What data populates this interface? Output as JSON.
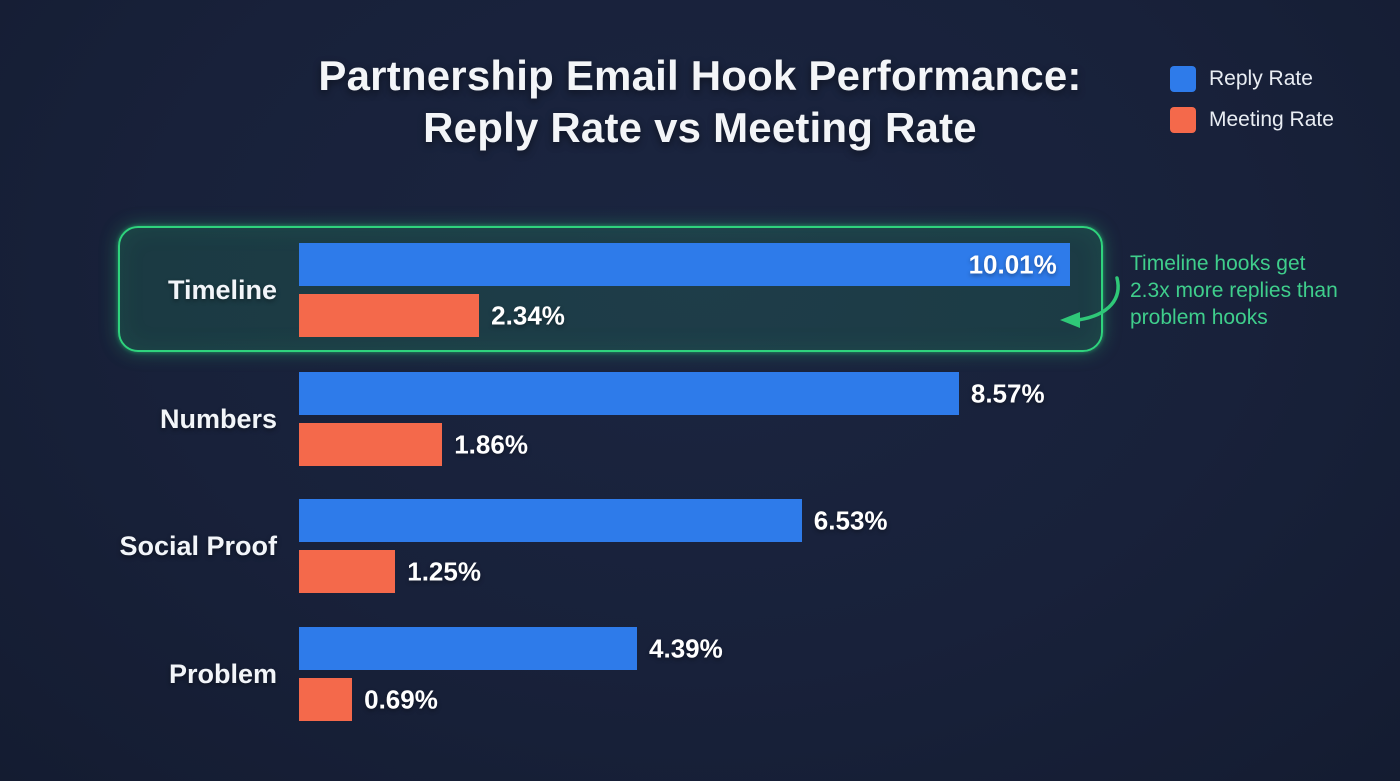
{
  "title": {
    "line1": "Partnership Email Hook Performance:",
    "line2": "Reply Rate vs Meeting Rate"
  },
  "legend": [
    {
      "label": "Reply Rate",
      "color": "#2e7bea"
    },
    {
      "label": "Meeting Rate",
      "color": "#f4694b"
    }
  ],
  "annotation": {
    "lines": [
      "Timeline hooks get",
      "2.3x more replies than",
      "problem hooks"
    ],
    "color": "#3fce8c",
    "arrow_icon": "curved-arrow-left",
    "arrow_color": "#2fc878"
  },
  "highlight": {
    "category": "Timeline",
    "border_color": "#2fd37d"
  },
  "colors": {
    "background": "#18213a",
    "reply_bar": "#2e7bea",
    "meeting_bar": "#f4694b",
    "text": "#f2f5f9"
  },
  "chart_data": {
    "type": "bar",
    "orientation": "horizontal",
    "title": "Partnership Email Hook Performance: Reply Rate vs Meeting Rate",
    "categories": [
      "Timeline",
      "Numbers",
      "Social Proof",
      "Problem"
    ],
    "series": [
      {
        "name": "Reply Rate",
        "color": "#2e7bea",
        "values": [
          10.01,
          8.57,
          6.53,
          4.39
        ],
        "labels": [
          "10.01%",
          "8.57%",
          "6.53%",
          "4.39%"
        ]
      },
      {
        "name": "Meeting Rate",
        "color": "#f4694b",
        "values": [
          2.34,
          1.86,
          1.25,
          0.69
        ],
        "labels": [
          "2.34%",
          "1.86%",
          "1.25%",
          "0.69%"
        ]
      }
    ],
    "xlim": [
      0,
      10.5
    ],
    "grid": false,
    "legend_position": "top-right",
    "highlighted_category": "Timeline",
    "annotation": "Timeline hooks get 2.3x more replies than problem hooks",
    "reply_label_inside": [
      true,
      false,
      false,
      false
    ]
  }
}
